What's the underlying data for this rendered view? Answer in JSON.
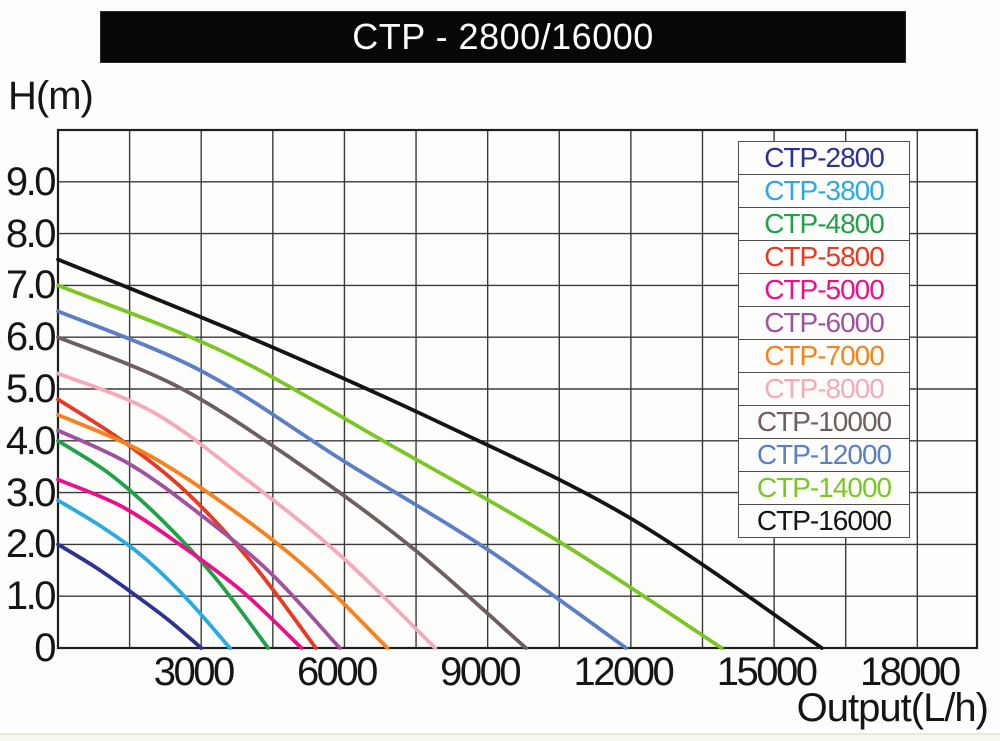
{
  "title_banner": {
    "text": "CTP - 2800/16000",
    "bg_color": "#070707",
    "text_color": "#ffffff"
  },
  "axes": {
    "y_title": "H(m)",
    "x_title": "Output(L/h)",
    "y_ticks": [
      {
        "label": "9.0",
        "value": 9
      },
      {
        "label": "8.0",
        "value": 8
      },
      {
        "label": "7.0",
        "value": 7
      },
      {
        "label": "6.0",
        "value": 6
      },
      {
        "label": "5.0",
        "value": 5
      },
      {
        "label": "4.0",
        "value": 4
      },
      {
        "label": "3.0",
        "value": 3
      },
      {
        "label": "2.0",
        "value": 2
      },
      {
        "label": "1.0",
        "value": 1
      },
      {
        "label": "0",
        "value": 0
      }
    ],
    "x_ticks": [
      {
        "label": "3000",
        "value": 3000
      },
      {
        "label": "6000",
        "value": 6000
      },
      {
        "label": "9000",
        "value": 9000
      },
      {
        "label": "12000",
        "value": 12000
      },
      {
        "label": "15000",
        "value": 15000
      },
      {
        "label": "18000",
        "value": 18000
      }
    ]
  },
  "chart_data": {
    "type": "line",
    "title": "CTP - 2800/16000",
    "xlabel": "Output(L/h)",
    "ylabel": "H(m)",
    "xlim": [
      0,
      19250
    ],
    "ylim": [
      0,
      10
    ],
    "x_gridline_step": 1500,
    "y_gridline_step": 1,
    "grid": true,
    "legend_position": "top-right",
    "grid_color": "#3a3a3a",
    "series": [
      {
        "name": "CTP-2800",
        "color": "#2e3192",
        "shutoff_head_m": 2.0,
        "max_flow_lh": 3000,
        "points": [
          [
            0,
            2.0
          ],
          [
            800,
            1.55
          ],
          [
            1500,
            1.1
          ],
          [
            2300,
            0.55
          ],
          [
            3000,
            0
          ]
        ]
      },
      {
        "name": "CTP-3800",
        "color": "#29abe2",
        "shutoff_head_m": 2.85,
        "max_flow_lh": 3600,
        "points": [
          [
            0,
            2.85
          ],
          [
            900,
            2.35
          ],
          [
            1800,
            1.75
          ],
          [
            2700,
            0.95
          ],
          [
            3600,
            0
          ]
        ]
      },
      {
        "name": "CTP-4800",
        "color": "#22a14b",
        "shutoff_head_m": 4.0,
        "max_flow_lh": 4400,
        "points": [
          [
            0,
            4.0
          ],
          [
            1100,
            3.35
          ],
          [
            2200,
            2.45
          ],
          [
            3300,
            1.35
          ],
          [
            4400,
            0
          ]
        ]
      },
      {
        "name": "CTP-5800",
        "color": "#e63a24",
        "shutoff_head_m": 4.8,
        "max_flow_lh": 5400,
        "points": [
          [
            0,
            4.8
          ],
          [
            1350,
            4.0
          ],
          [
            2700,
            3.0
          ],
          [
            4100,
            1.6
          ],
          [
            5400,
            0
          ]
        ]
      },
      {
        "name": "CTP-5000",
        "color": "#ec0f8b",
        "shutoff_head_m": 3.25,
        "max_flow_lh": 5100,
        "points": [
          [
            0,
            3.25
          ],
          [
            1300,
            2.75
          ],
          [
            2550,
            2.0
          ],
          [
            3850,
            1.1
          ],
          [
            5100,
            0
          ]
        ]
      },
      {
        "name": "CTP-6000",
        "color": "#a0519f",
        "shutoff_head_m": 4.2,
        "max_flow_lh": 5900,
        "points": [
          [
            0,
            4.2
          ],
          [
            1500,
            3.55
          ],
          [
            2950,
            2.6
          ],
          [
            4450,
            1.45
          ],
          [
            5900,
            0
          ]
        ]
      },
      {
        "name": "CTP-7000",
        "color": "#f5821f",
        "shutoff_head_m": 4.5,
        "max_flow_lh": 6900,
        "points": [
          [
            0,
            4.5
          ],
          [
            1750,
            3.8
          ],
          [
            3450,
            2.8
          ],
          [
            5200,
            1.55
          ],
          [
            6900,
            0
          ]
        ]
      },
      {
        "name": "CTP-8000",
        "color": "#f6a9ba",
        "shutoff_head_m": 5.3,
        "max_flow_lh": 7900,
        "points": [
          [
            0,
            5.3
          ],
          [
            2000,
            4.55
          ],
          [
            3950,
            3.25
          ],
          [
            5900,
            1.8
          ],
          [
            7900,
            0
          ]
        ]
      },
      {
        "name": "CTP-10000",
        "color": "#6d5f5f",
        "shutoff_head_m": 6.0,
        "max_flow_lh": 9800,
        "points": [
          [
            0,
            6.0
          ],
          [
            2500,
            5.05
          ],
          [
            4900,
            3.65
          ],
          [
            7400,
            1.95
          ],
          [
            9800,
            0
          ]
        ]
      },
      {
        "name": "CTP-12000",
        "color": "#5b7ec7",
        "shutoff_head_m": 6.5,
        "max_flow_lh": 11900,
        "points": [
          [
            0,
            6.5
          ],
          [
            3000,
            5.35
          ],
          [
            6000,
            3.6
          ],
          [
            9000,
            1.9
          ],
          [
            11900,
            0
          ]
        ]
      },
      {
        "name": "CTP-14000",
        "color": "#7cc623",
        "shutoff_head_m": 7.0,
        "max_flow_lh": 13900,
        "points": [
          [
            0,
            7.0
          ],
          [
            3500,
            5.7
          ],
          [
            7000,
            3.9
          ],
          [
            10500,
            2.05
          ],
          [
            13900,
            0
          ]
        ]
      },
      {
        "name": "CTP-16000",
        "color": "#141414",
        "shutoff_head_m": 7.5,
        "max_flow_lh": 16000,
        "points": [
          [
            0,
            7.5
          ],
          [
            4000,
            6.0
          ],
          [
            8000,
            4.35
          ],
          [
            12000,
            2.5
          ],
          [
            16000,
            0
          ]
        ]
      }
    ]
  }
}
